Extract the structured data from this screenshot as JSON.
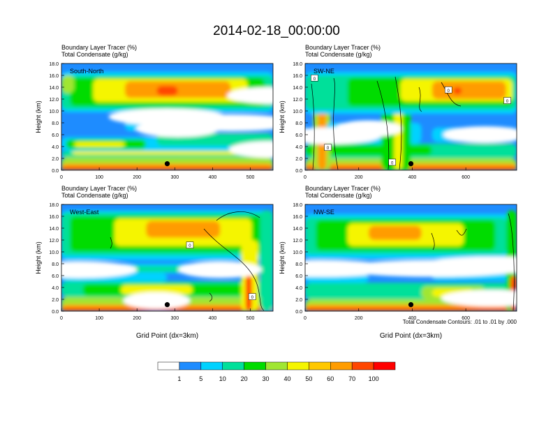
{
  "figure": {
    "title": "2014-02-18_00:00:00",
    "contour_note": "Total Condensate Contours: .01 to .01 by .000"
  },
  "chart_data": [
    {
      "type": "heatmap",
      "panel": "South-North",
      "title_lines": [
        "Boundary Layer Tracer   (%)",
        "Total Condensate   (g/kg)"
      ],
      "ylabel": "Height (km)",
      "xlabel": "",
      "xlim": [
        0,
        560
      ],
      "ylim": [
        0,
        18
      ],
      "xticks": [
        0,
        100,
        200,
        300,
        400,
        500
      ],
      "yticks": [
        "0.0",
        "2.0",
        "4.0",
        "6.0",
        "8.0",
        "10.0",
        "12.0",
        "14.0",
        "16.0",
        "18.0"
      ],
      "marker": {
        "x": 280,
        "y": 1.1
      },
      "contour_labels": []
    },
    {
      "type": "heatmap",
      "panel": "SW-NE",
      "title_lines": [
        "Boundary Layer Tracer   (%)",
        "Total Condensate   (g/kg)"
      ],
      "ylabel": "Height (km)",
      "xlabel": "",
      "xlim": [
        0,
        790
      ],
      "ylim": [
        0,
        18
      ],
      "xticks": [
        0,
        200,
        400,
        600
      ],
      "yticks": [
        "0.0",
        "2.0",
        "4.0",
        "6.0",
        "8.0",
        "10.0",
        "12.0",
        "14.0",
        "16.0",
        "18.0"
      ],
      "marker": {
        "x": 395,
        "y": 1.1
      },
      "contour_labels": [
        {
          "text": "0",
          "x": 35,
          "y": 15.5
        },
        {
          "text": "0",
          "x": 85,
          "y": 3.8
        },
        {
          "text": "0",
          "x": 535,
          "y": 13.5
        },
        {
          "text": "0",
          "x": 325,
          "y": 1.3
        },
        {
          "text": "0",
          "x": 755,
          "y": 11.7
        }
      ]
    },
    {
      "type": "heatmap",
      "panel": "West-East",
      "title_lines": [
        "Boundary Layer Tracer   (%)",
        "Total Condensate   (g/kg)"
      ],
      "ylabel": "Height (km)",
      "xlabel": "Grid Point (dx=3km)",
      "xlim": [
        0,
        560
      ],
      "ylim": [
        0,
        18
      ],
      "xticks": [
        0,
        100,
        200,
        300,
        400,
        500
      ],
      "yticks": [
        "0.0",
        "2.0",
        "4.0",
        "6.0",
        "8.0",
        "10.0",
        "12.0",
        "14.0",
        "16.0",
        "18.0"
      ],
      "marker": {
        "x": 280,
        "y": 1.1
      },
      "contour_labels": [
        {
          "text": "0",
          "x": 340,
          "y": 11.1
        },
        {
          "text": "0",
          "x": 505,
          "y": 2.4
        }
      ]
    },
    {
      "type": "heatmap",
      "panel": "NW-SE",
      "title_lines": [
        "Boundary Layer Tracer   (%)",
        "Total Condensate   (g/kg)"
      ],
      "ylabel": "Height (km)",
      "xlabel": "Grid Point (dx=3km)",
      "xlim": [
        0,
        790
      ],
      "ylim": [
        0,
        18
      ],
      "xticks": [
        0,
        200,
        400,
        600
      ],
      "yticks": [
        "0.0",
        "2.0",
        "4.0",
        "6.0",
        "8.0",
        "10.0",
        "12.0",
        "14.0",
        "16.0",
        "18.0"
      ],
      "marker": {
        "x": 395,
        "y": 1.1
      },
      "contour_labels": []
    }
  ],
  "colorbar": {
    "labels": [
      "1",
      "5",
      "10",
      "20",
      "30",
      "40",
      "50",
      "60",
      "70",
      "100"
    ],
    "colors": [
      "#ffffff",
      "#1e8cff",
      "#00d2ff",
      "#00e09a",
      "#00dc00",
      "#a0e632",
      "#f5f500",
      "#ffc800",
      "#ff9c00",
      "#ff4600",
      "#ff0000"
    ]
  },
  "colors": {
    "background": "#ffffff",
    "outline": "#000000"
  }
}
